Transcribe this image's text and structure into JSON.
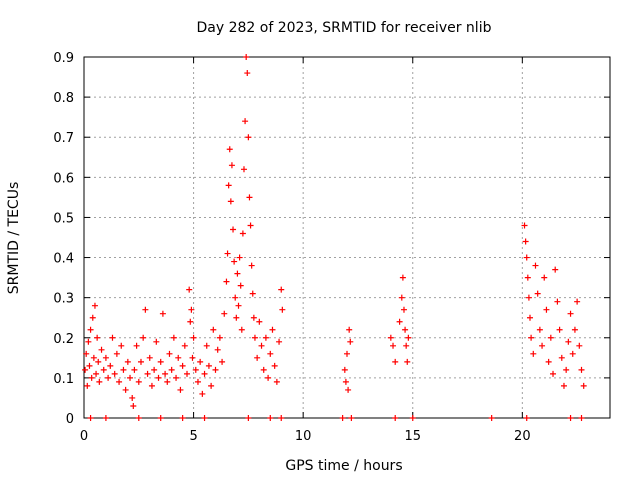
{
  "chart_data": {
    "type": "scatter",
    "title": "Day 282 of 2023, SRMTID for receiver nlib",
    "xlabel": "GPS time / hours",
    "ylabel": "SRMTID / TECUs",
    "xlim": [
      0,
      24
    ],
    "ylim": [
      0,
      0.9
    ],
    "x_ticks": [
      0,
      5,
      10,
      15,
      20
    ],
    "y_ticks": [
      0,
      0.1,
      0.2,
      0.3,
      0.4,
      0.5,
      0.6,
      0.7,
      0.8,
      0.9
    ],
    "x_tick_labels": [
      "0",
      "5",
      "10",
      "15",
      "20"
    ],
    "y_tick_labels": [
      "0",
      "0.1",
      "0.2",
      "0.3",
      "0.4",
      "0.5",
      "0.6",
      "0.7",
      "0.8",
      "0.9"
    ],
    "grid": true,
    "marker": "+",
    "color": "#ff0000",
    "series": [
      {
        "name": "SRMTID",
        "points": [
          [
            0.05,
            0.12
          ],
          [
            0.1,
            0.16
          ],
          [
            0.15,
            0.08
          ],
          [
            0.2,
            0.19
          ],
          [
            0.25,
            0.13
          ],
          [
            0.3,
            0.22
          ],
          [
            0.35,
            0.1
          ],
          [
            0.4,
            0.25
          ],
          [
            0.45,
            0.15
          ],
          [
            0.5,
            0.28
          ],
          [
            0.55,
            0.11
          ],
          [
            0.6,
            0.2
          ],
          [
            0.65,
            0.14
          ],
          [
            0.7,
            0.09
          ],
          [
            0.8,
            0.17
          ],
          [
            0.9,
            0.12
          ],
          [
            1.0,
            0.15
          ],
          [
            1.1,
            0.1
          ],
          [
            1.2,
            0.13
          ],
          [
            1.3,
            0.2
          ],
          [
            1.4,
            0.11
          ],
          [
            1.5,
            0.16
          ],
          [
            1.6,
            0.09
          ],
          [
            1.7,
            0.18
          ],
          [
            1.8,
            0.12
          ],
          [
            1.9,
            0.07
          ],
          [
            2.0,
            0.14
          ],
          [
            2.1,
            0.1
          ],
          [
            2.2,
            0.05
          ],
          [
            2.25,
            0.03
          ],
          [
            2.3,
            0.12
          ],
          [
            2.4,
            0.18
          ],
          [
            2.5,
            0.09
          ],
          [
            2.6,
            0.14
          ],
          [
            2.7,
            0.2
          ],
          [
            2.8,
            0.27
          ],
          [
            2.9,
            0.11
          ],
          [
            3.0,
            0.15
          ],
          [
            3.1,
            0.08
          ],
          [
            3.2,
            0.12
          ],
          [
            3.3,
            0.19
          ],
          [
            3.4,
            0.1
          ],
          [
            3.5,
            0.14
          ],
          [
            3.6,
            0.26
          ],
          [
            3.7,
            0.11
          ],
          [
            3.8,
            0.09
          ],
          [
            3.9,
            0.16
          ],
          [
            4.0,
            0.12
          ],
          [
            4.1,
            0.2
          ],
          [
            4.2,
            0.1
          ],
          [
            4.3,
            0.15
          ],
          [
            4.4,
            0.07
          ],
          [
            4.5,
            0.13
          ],
          [
            4.6,
            0.18
          ],
          [
            4.7,
            0.11
          ],
          [
            4.8,
            0.32
          ],
          [
            4.85,
            0.24
          ],
          [
            4.9,
            0.27
          ],
          [
            4.95,
            0.15
          ],
          [
            5.0,
            0.2
          ],
          [
            5.1,
            0.12
          ],
          [
            5.2,
            0.09
          ],
          [
            5.3,
            0.14
          ],
          [
            5.4,
            0.06
          ],
          [
            5.5,
            0.11
          ],
          [
            5.6,
            0.18
          ],
          [
            5.7,
            0.13
          ],
          [
            5.8,
            0.08
          ],
          [
            5.9,
            0.22
          ],
          [
            6.0,
            0.12
          ],
          [
            6.1,
            0.17
          ],
          [
            6.2,
            0.2
          ],
          [
            6.3,
            0.14
          ],
          [
            6.4,
            0.26
          ],
          [
            6.5,
            0.34
          ],
          [
            6.55,
            0.41
          ],
          [
            6.6,
            0.58
          ],
          [
            6.65,
            0.67
          ],
          [
            6.7,
            0.54
          ],
          [
            6.75,
            0.63
          ],
          [
            6.8,
            0.47
          ],
          [
            6.85,
            0.39
          ],
          [
            6.9,
            0.3
          ],
          [
            6.95,
            0.25
          ],
          [
            7.0,
            0.36
          ],
          [
            7.05,
            0.28
          ],
          [
            7.1,
            0.4
          ],
          [
            7.15,
            0.33
          ],
          [
            7.2,
            0.22
          ],
          [
            7.25,
            0.46
          ],
          [
            7.3,
            0.62
          ],
          [
            7.35,
            0.74
          ],
          [
            7.4,
            0.9
          ],
          [
            7.45,
            0.86
          ],
          [
            7.5,
            0.7
          ],
          [
            7.55,
            0.55
          ],
          [
            7.6,
            0.48
          ],
          [
            7.65,
            0.38
          ],
          [
            7.7,
            0.31
          ],
          [
            7.75,
            0.25
          ],
          [
            7.8,
            0.2
          ],
          [
            7.9,
            0.15
          ],
          [
            8.0,
            0.24
          ],
          [
            8.1,
            0.18
          ],
          [
            8.2,
            0.12
          ],
          [
            8.3,
            0.2
          ],
          [
            8.4,
            0.1
          ],
          [
            8.5,
            0.16
          ],
          [
            8.6,
            0.22
          ],
          [
            8.7,
            0.13
          ],
          [
            8.8,
            0.09
          ],
          [
            8.9,
            0.19
          ],
          [
            9.0,
            0.32
          ],
          [
            9.05,
            0.27
          ],
          [
            11.9,
            0.12
          ],
          [
            11.95,
            0.09
          ],
          [
            12.0,
            0.16
          ],
          [
            12.05,
            0.07
          ],
          [
            12.1,
            0.22
          ],
          [
            12.15,
            0.19
          ],
          [
            14.0,
            0.2
          ],
          [
            14.1,
            0.18
          ],
          [
            14.2,
            0.14
          ],
          [
            14.4,
            0.24
          ],
          [
            14.5,
            0.3
          ],
          [
            14.55,
            0.35
          ],
          [
            14.6,
            0.27
          ],
          [
            14.65,
            0.22
          ],
          [
            14.7,
            0.18
          ],
          [
            14.75,
            0.14
          ],
          [
            14.8,
            0.2
          ],
          [
            20.1,
            0.48
          ],
          [
            20.15,
            0.44
          ],
          [
            20.2,
            0.4
          ],
          [
            20.25,
            0.35
          ],
          [
            20.3,
            0.3
          ],
          [
            20.35,
            0.25
          ],
          [
            20.4,
            0.2
          ],
          [
            20.5,
            0.16
          ],
          [
            20.6,
            0.38
          ],
          [
            20.7,
            0.31
          ],
          [
            20.8,
            0.22
          ],
          [
            20.9,
            0.18
          ],
          [
            21.0,
            0.35
          ],
          [
            21.1,
            0.27
          ],
          [
            21.2,
            0.14
          ],
          [
            21.3,
            0.2
          ],
          [
            21.4,
            0.11
          ],
          [
            21.5,
            0.37
          ],
          [
            21.6,
            0.29
          ],
          [
            21.7,
            0.22
          ],
          [
            21.8,
            0.15
          ],
          [
            21.9,
            0.08
          ],
          [
            22.0,
            0.12
          ],
          [
            22.1,
            0.19
          ],
          [
            22.2,
            0.26
          ],
          [
            22.3,
            0.16
          ],
          [
            22.4,
            0.22
          ],
          [
            22.5,
            0.29
          ],
          [
            22.6,
            0.18
          ],
          [
            22.7,
            0.12
          ],
          [
            22.8,
            0.08
          ],
          [
            0.3,
            0.0
          ],
          [
            1.0,
            0.0
          ],
          [
            2.5,
            0.0
          ],
          [
            3.5,
            0.0
          ],
          [
            4.5,
            0.0
          ],
          [
            5.5,
            0.0
          ],
          [
            7.5,
            0.0
          ],
          [
            8.5,
            0.0
          ],
          [
            9.0,
            0.0
          ],
          [
            11.8,
            0.0
          ],
          [
            12.2,
            0.0
          ],
          [
            14.2,
            0.0
          ],
          [
            15.0,
            0.0
          ],
          [
            18.6,
            0.0
          ],
          [
            20.2,
            0.0
          ],
          [
            22.2,
            0.0
          ],
          [
            22.7,
            0.0
          ]
        ]
      }
    ]
  }
}
